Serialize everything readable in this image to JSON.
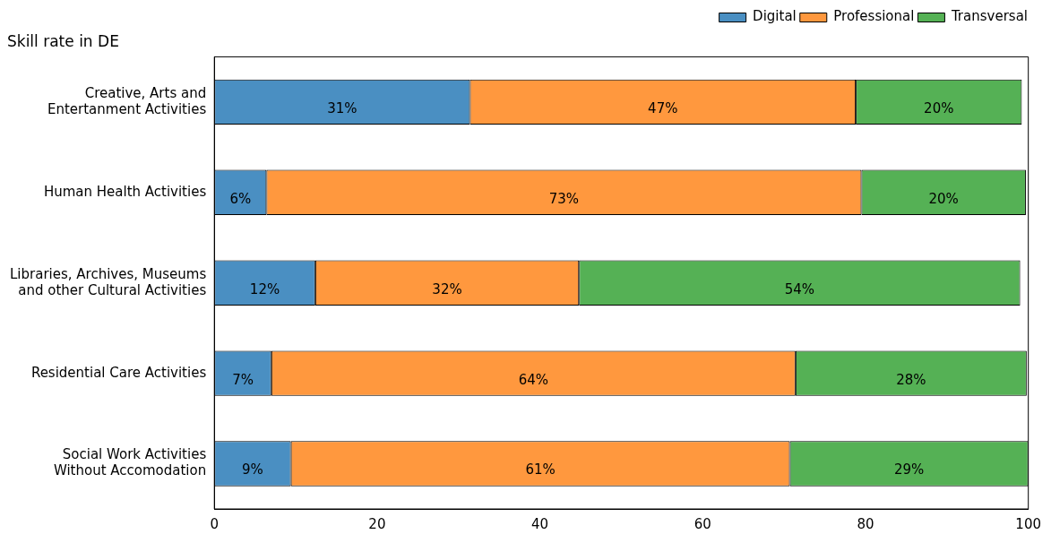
{
  "chart_data": {
    "type": "bar",
    "orientation": "horizontal",
    "stacked": true,
    "title": "Skill rate in DE",
    "categories": [
      "Creative, Arts and\nEntertanment Activities",
      "Human Health Activities",
      "Libraries, Archives, Museums\nand other Cultural Activities",
      "Residential Care Activities",
      "Social Work Activities\nWithout Accomodation"
    ],
    "series": [
      {
        "name": "Digital",
        "color": "#4a8fc2",
        "values": [
          31.4,
          6.4,
          12.4,
          7.0,
          9.4
        ],
        "value_labels": [
          "31%",
          "6%",
          "12%",
          "7%",
          "9%"
        ]
      },
      {
        "name": "Professional",
        "color": "#ff983e",
        "values": [
          47.4,
          73.1,
          32.4,
          64.4,
          61.3
        ],
        "value_labels": [
          "47%",
          "73%",
          "32%",
          "64%",
          "61%"
        ]
      },
      {
        "name": "Transversal",
        "color": "#55b155",
        "values": [
          20.4,
          20.2,
          54.2,
          28.4,
          29.3
        ],
        "value_labels": [
          "20%",
          "20%",
          "54%",
          "28%",
          "29%"
        ]
      }
    ],
    "xlim": [
      0,
      100
    ],
    "xticks": [
      0,
      20,
      40,
      60,
      80,
      100
    ],
    "grid": false,
    "legend": "top right"
  }
}
